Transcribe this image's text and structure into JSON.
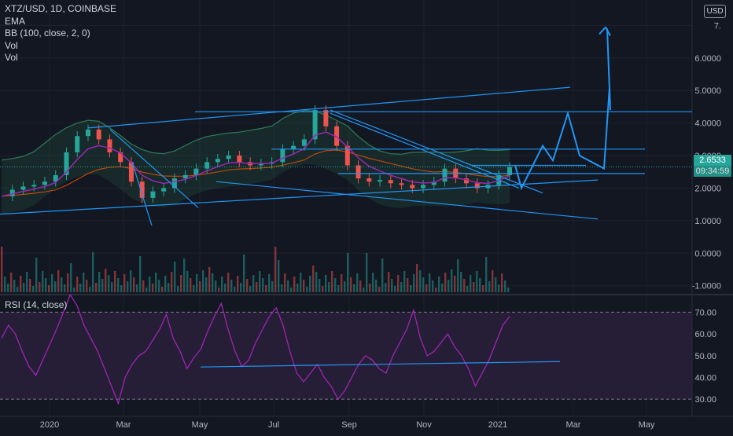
{
  "legend": {
    "symbol": "XTZ/USD, 1D, COINBASE",
    "ema": "EMA",
    "bb": "BB (100, close, 2, 0)",
    "vol1": "Vol",
    "vol2": "Vol"
  },
  "rsi_title": "RSI (14, close)",
  "currency_badge": "USD",
  "last_price": "2.6533",
  "countdown": "09:34:59",
  "colors": {
    "background": "#131722",
    "grid": "#1e222d",
    "candle_up": "#26a69a",
    "candle_down": "#ef5350",
    "ema": "#9c27b0",
    "ema_slow": "#e65100",
    "bb_band": "#2e7d5b",
    "trendline": "#2196f3",
    "rsi_line": "#9c27b0",
    "rsi_fill": "#2a1e3a"
  },
  "chart_data": [
    {
      "type": "line",
      "name": "price",
      "ylim": [
        -1.2,
        7.3
      ],
      "x_ticks": [
        "2020",
        "Mar",
        "May",
        "Jul",
        "Sep",
        "Nov",
        "2021",
        "Mar",
        "May"
      ],
      "y_ticks": [
        "7.",
        "6.0000",
        "5.0000",
        "4.0000",
        "3.0000",
        "2.0000",
        "1.0000",
        "0.0000",
        "-1.0000"
      ],
      "series": [
        {
          "values": [
            1.75,
            1.95,
            2.05,
            2.1,
            2.2,
            2.4,
            3.1,
            3.6,
            3.8,
            3.5,
            3.1,
            2.8,
            2.2,
            1.7,
            1.9,
            2.0,
            2.3,
            2.4,
            2.6,
            2.8,
            2.9,
            3.0,
            2.8,
            2.7,
            2.75,
            2.8,
            3.2,
            3.3,
            3.5,
            4.4,
            3.9,
            3.3,
            2.7,
            2.3,
            2.2,
            2.25,
            2.15,
            2.1,
            2.0,
            2.1,
            2.2,
            2.6,
            2.3,
            2.15,
            2.0,
            2.1,
            2.4,
            2.65
          ]
        },
        {
          "values": [
            1.0,
            1.1,
            1.3,
            1.6,
            2.7,
            2.0,
            3.3,
            2.85,
            4.3,
            3.0,
            2.6,
            5.1,
            4.4,
            6.9
          ]
        }
      ]
    },
    {
      "type": "line",
      "name": "rsi",
      "ylim": [
        25,
        77
      ],
      "y_ticks": [
        "70.00",
        "60.00",
        "50.00",
        "40.00",
        "30.00"
      ],
      "levels": [
        70,
        30
      ],
      "values": [
        58,
        64,
        60,
        52,
        45,
        41,
        48,
        55,
        62,
        70,
        78,
        73,
        64,
        58,
        52,
        44,
        36,
        28,
        40,
        46,
        50,
        52,
        57,
        62,
        69,
        58,
        52,
        44,
        49,
        53,
        61,
        68,
        74,
        62,
        52,
        45,
        48,
        56,
        62,
        68,
        72,
        64,
        52,
        42,
        38,
        42,
        46,
        40,
        36,
        30,
        34,
        40,
        46,
        50,
        48,
        44,
        42,
        50,
        56,
        62,
        71,
        58,
        50,
        52,
        56,
        60,
        54,
        50,
        44,
        36,
        42,
        48,
        56,
        64,
        68
      ]
    }
  ]
}
